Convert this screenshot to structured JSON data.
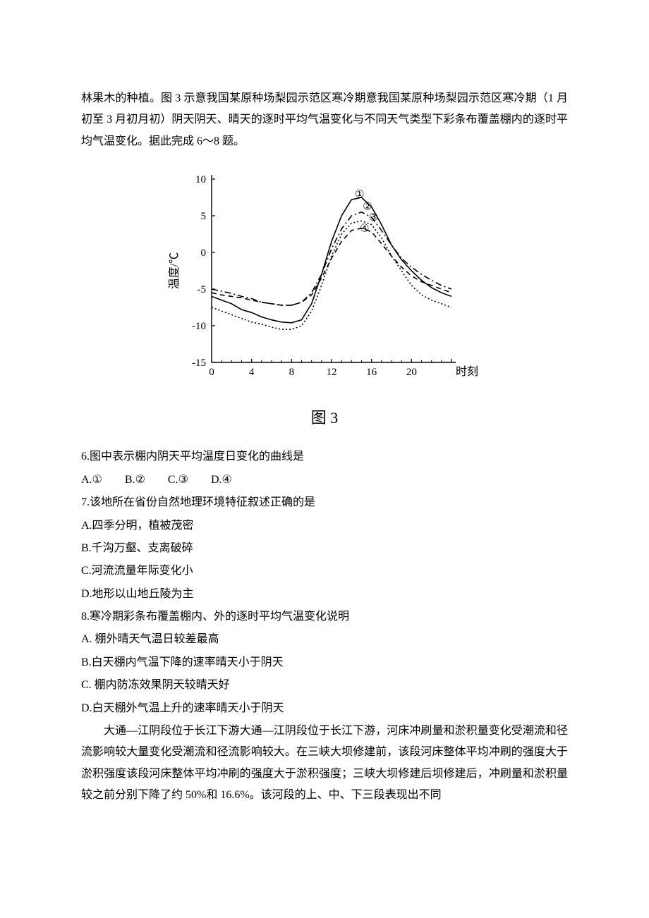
{
  "intro": {
    "p1": "林果木的种植。图 3 示意我国某原种场梨园示范区寒冷期意我国某原种场梨园示范区寒冷期（1 月初至 3 月初月初）阴天阴天、晴天的逐时平均气温变化与不同天气类型下彩条布覆盖棚内的逐时平均气温变化。据此完成 6～8 题。"
  },
  "chart": {
    "type": "line",
    "caption": "图 3",
    "ylabel": "温度/℃",
    "xlabel": "时刻",
    "xlim": [
      0,
      24
    ],
    "ylim": [
      -15,
      10
    ],
    "xtick_step": 4,
    "xticks": [
      0,
      4,
      8,
      12,
      16,
      20,
      24
    ],
    "xticklabels": [
      "0",
      "4",
      "8",
      "12",
      "16",
      "20",
      ""
    ],
    "ytick_step": 5,
    "yticks": [
      -15,
      -10,
      -5,
      0,
      5,
      10
    ],
    "background_color": "#ffffff",
    "axis_color": "#000000",
    "line_color": "#000000",
    "label_fontsize": 16,
    "tick_fontsize": 15,
    "series": [
      {
        "id": "1",
        "label": "①",
        "style": "solid",
        "label_x": 14.8,
        "label_y": 8.0,
        "points": [
          [
            0,
            -6.0
          ],
          [
            1,
            -6.5
          ],
          [
            2,
            -7.0
          ],
          [
            3,
            -7.8
          ],
          [
            4,
            -8.2
          ],
          [
            5,
            -8.8
          ],
          [
            6,
            -9.2
          ],
          [
            7,
            -9.5
          ],
          [
            8,
            -9.6
          ],
          [
            9,
            -9.2
          ],
          [
            10,
            -7.0
          ],
          [
            11,
            -3.0
          ],
          [
            12,
            1.5
          ],
          [
            13,
            5.0
          ],
          [
            14,
            7.2
          ],
          [
            15,
            7.5
          ],
          [
            16,
            6.2
          ],
          [
            17,
            3.8
          ],
          [
            18,
            1.0
          ],
          [
            19,
            -1.0
          ],
          [
            20,
            -2.5
          ],
          [
            21,
            -3.8
          ],
          [
            22,
            -4.8
          ],
          [
            23,
            -5.5
          ],
          [
            24,
            -6.0
          ]
        ]
      },
      {
        "id": "2",
        "label": "②",
        "style": "dash-dot",
        "label_x": 15.6,
        "label_y": 6.3,
        "points": [
          [
            0,
            -5.0
          ],
          [
            1,
            -5.3
          ],
          [
            2,
            -5.6
          ],
          [
            3,
            -6.0
          ],
          [
            4,
            -6.3
          ],
          [
            5,
            -6.8
          ],
          [
            6,
            -7.0
          ],
          [
            7,
            -7.2
          ],
          [
            8,
            -7.2
          ],
          [
            9,
            -6.8
          ],
          [
            10,
            -5.5
          ],
          [
            11,
            -3.0
          ],
          [
            12,
            0.5
          ],
          [
            13,
            3.2
          ],
          [
            14,
            5.0
          ],
          [
            15,
            5.5
          ],
          [
            16,
            4.8
          ],
          [
            17,
            3.0
          ],
          [
            18,
            1.0
          ],
          [
            19,
            -0.8
          ],
          [
            20,
            -2.0
          ],
          [
            21,
            -3.0
          ],
          [
            22,
            -3.8
          ],
          [
            23,
            -4.5
          ],
          [
            24,
            -5.0
          ]
        ]
      },
      {
        "id": "3",
        "label": "③",
        "style": "dotted",
        "label_x": 16.2,
        "label_y": 4.8,
        "points": [
          [
            0,
            -7.5
          ],
          [
            1,
            -8.0
          ],
          [
            2,
            -8.5
          ],
          [
            3,
            -9.0
          ],
          [
            4,
            -9.5
          ],
          [
            5,
            -9.8
          ],
          [
            6,
            -10.2
          ],
          [
            7,
            -10.5
          ],
          [
            8,
            -10.5
          ],
          [
            9,
            -10.0
          ],
          [
            10,
            -8.0
          ],
          [
            11,
            -4.5
          ],
          [
            12,
            -0.5
          ],
          [
            13,
            2.5
          ],
          [
            14,
            4.0
          ],
          [
            15,
            4.3
          ],
          [
            16,
            3.8
          ],
          [
            17,
            2.0
          ],
          [
            18,
            -0.5
          ],
          [
            19,
            -2.5
          ],
          [
            20,
            -4.5
          ],
          [
            21,
            -5.8
          ],
          [
            22,
            -6.5
          ],
          [
            23,
            -7.0
          ],
          [
            24,
            -7.5
          ]
        ]
      },
      {
        "id": "4",
        "label": "④",
        "style": "dashed",
        "label_x": 15.3,
        "label_y": 3.3,
        "points": [
          [
            0,
            -5.5
          ],
          [
            1,
            -5.8
          ],
          [
            2,
            -6.0
          ],
          [
            3,
            -6.2
          ],
          [
            4,
            -6.5
          ],
          [
            5,
            -6.8
          ],
          [
            6,
            -7.0
          ],
          [
            7,
            -7.2
          ],
          [
            8,
            -7.2
          ],
          [
            9,
            -6.8
          ],
          [
            10,
            -5.8
          ],
          [
            11,
            -3.5
          ],
          [
            12,
            -0.8
          ],
          [
            13,
            1.5
          ],
          [
            14,
            3.0
          ],
          [
            15,
            3.3
          ],
          [
            16,
            2.8
          ],
          [
            17,
            1.2
          ],
          [
            18,
            -0.5
          ],
          [
            19,
            -2.0
          ],
          [
            20,
            -3.2
          ],
          [
            21,
            -4.0
          ],
          [
            22,
            -4.5
          ],
          [
            23,
            -5.0
          ],
          [
            24,
            -5.5
          ]
        ]
      }
    ]
  },
  "q6": {
    "stem": "6.图中表示棚内阴天平均温度日变化的曲线是",
    "optA": "A.①",
    "optB": "B.②",
    "optC": "C.③",
    "optD": "D.④"
  },
  "q7": {
    "stem": "7.该地所在省份自然地理环境特征叙述正确的是",
    "optA": "A.四季分明，植被茂密",
    "optB": "B.千沟万壑、支离破碎",
    "optC": "C.河流流量年际变化小",
    "optD": "D.地形以山地丘陵为主"
  },
  "q8": {
    "stem": "8.寒冷期彩条布覆盖棚内、外的逐时平均气温变化说明",
    "optA": "A. 棚外晴天气温日较差最高",
    "optB": "B.白天棚内气温下降的速率晴天小于阴天",
    "optC": "C. 棚内防冻效果阴天较晴天好",
    "optD": "D.白天棚外气温上升的速率晴天小于阴天"
  },
  "passage2": {
    "p1": "大通—江阴段位于长江下游大通—江阴段位于长江下游，河床冲刷量和淤积量变化受潮流和径流影响较大量变化受潮流和径流影响较大。在三峡大坝修建前，该段河床整体平均冲刷的强度大于淤积强度该段河床整体平均冲刷的强度大于淤积强度；三峡大坝修建后坝修建后，冲刷量和淤积量较之前分别下降了约 50%和 16.6%。该河段的上、中、下三段表现出不同"
  }
}
